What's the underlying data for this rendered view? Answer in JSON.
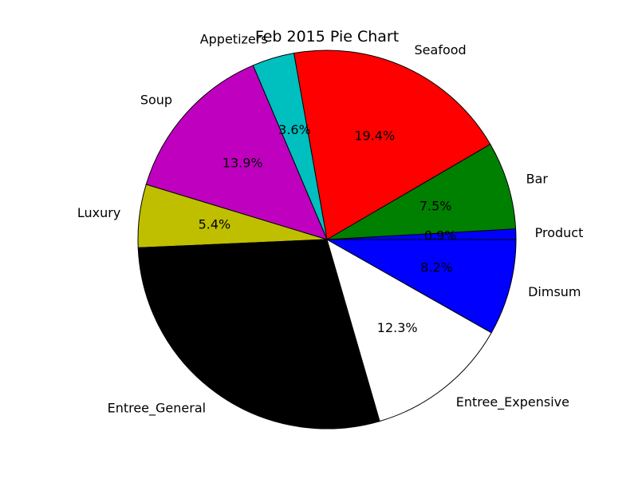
{
  "chart_data": {
    "type": "pie",
    "title": "Feb 2015 Pie Chart",
    "start_angle_deg": 0,
    "direction": "counterclockwise",
    "slices": [
      {
        "label": "Product",
        "percent": 0.9,
        "value_label": "0.9%",
        "color": "#0000ff"
      },
      {
        "label": "Bar",
        "percent": 7.5,
        "value_label": "7.5%",
        "color": "#008000"
      },
      {
        "label": "Seafood",
        "percent": 19.4,
        "value_label": "19.4%",
        "color": "#ff0000"
      },
      {
        "label": "Appetizers",
        "percent": 3.6,
        "value_label": "3.6%",
        "color": "#00bfbf"
      },
      {
        "label": "Soup",
        "percent": 13.9,
        "value_label": "13.9%",
        "color": "#bf00bf"
      },
      {
        "label": "Luxury",
        "percent": 5.4,
        "value_label": "5.4%",
        "color": "#bfbf00"
      },
      {
        "label": "Entree_General",
        "percent": 28.8,
        "value_label": "",
        "color": "#000000"
      },
      {
        "label": "Entree_Expensive",
        "percent": 12.3,
        "value_label": "12.3%",
        "color": "#ffffff"
      },
      {
        "label": "Dimsum",
        "percent": 8.2,
        "value_label": "8.2%",
        "color": "#0000ff"
      }
    ]
  }
}
